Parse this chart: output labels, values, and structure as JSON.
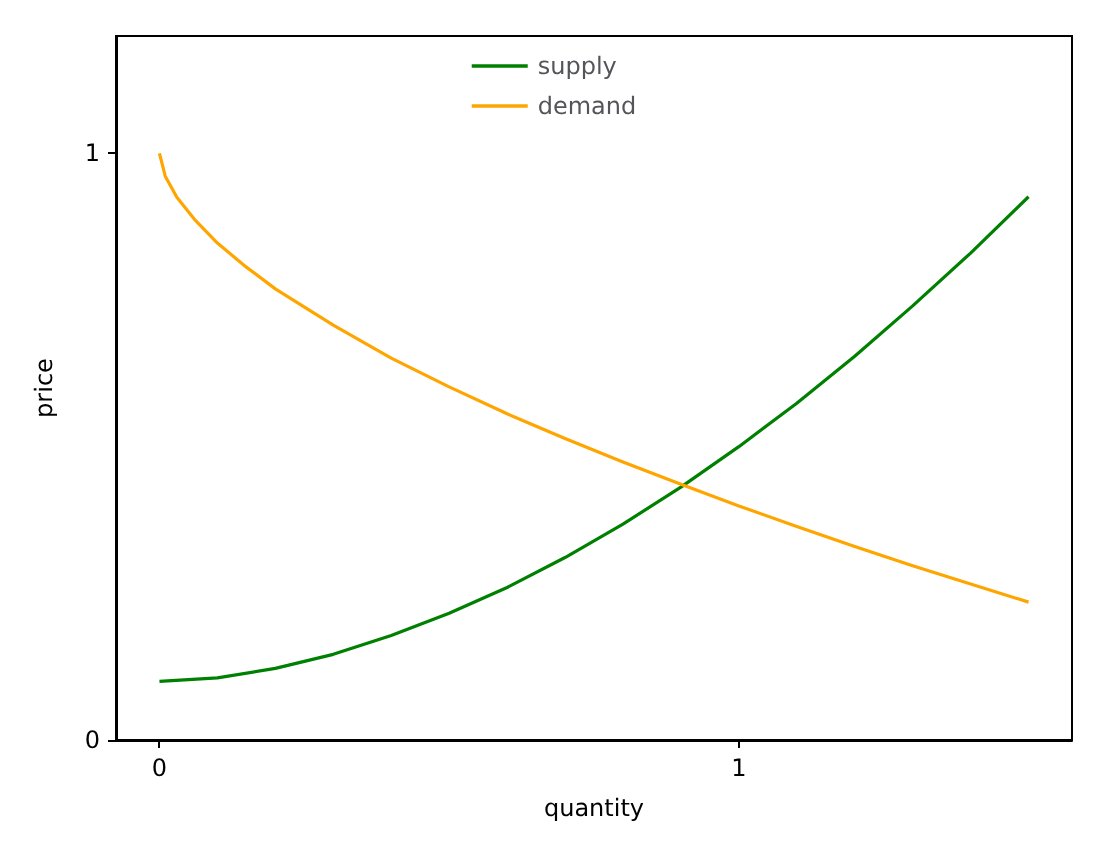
{
  "chart_data": {
    "type": "line",
    "xlabel": "quantity",
    "ylabel": "price",
    "xlim": [
      -0.075,
      1.575
    ],
    "ylim": [
      0,
      1.2
    ],
    "xticks": [
      0,
      1
    ],
    "yticks": [
      0,
      1
    ],
    "grid": false,
    "legend": "top",
    "marker": "none",
    "line_style": "solid",
    "series": [
      {
        "name": "supply",
        "color": "#008000",
        "x": [
          0,
          0.1,
          0.2,
          0.3,
          0.4,
          0.5,
          0.6,
          0.7,
          0.8,
          0.9,
          1.0,
          1.1,
          1.2,
          1.3,
          1.4,
          1.5
        ],
        "values": [
          0.1,
          0.106,
          0.122,
          0.146,
          0.178,
          0.216,
          0.26,
          0.311,
          0.368,
          0.431,
          0.5,
          0.574,
          0.654,
          0.74,
          0.83,
          0.926
        ]
      },
      {
        "name": "demand",
        "color": "#ffa500",
        "x": [
          0,
          0.01,
          0.03,
          0.06,
          0.1,
          0.15,
          0.2,
          0.3,
          0.4,
          0.5,
          0.6,
          0.7,
          0.8,
          0.9,
          1.0,
          1.1,
          1.2,
          1.3,
          1.4,
          1.5
        ],
        "values": [
          1,
          0.961,
          0.925,
          0.888,
          0.847,
          0.806,
          0.769,
          0.707,
          0.651,
          0.602,
          0.556,
          0.514,
          0.474,
          0.436,
          0.399,
          0.364,
          0.33,
          0.297,
          0.266,
          0.235
        ]
      }
    ]
  }
}
